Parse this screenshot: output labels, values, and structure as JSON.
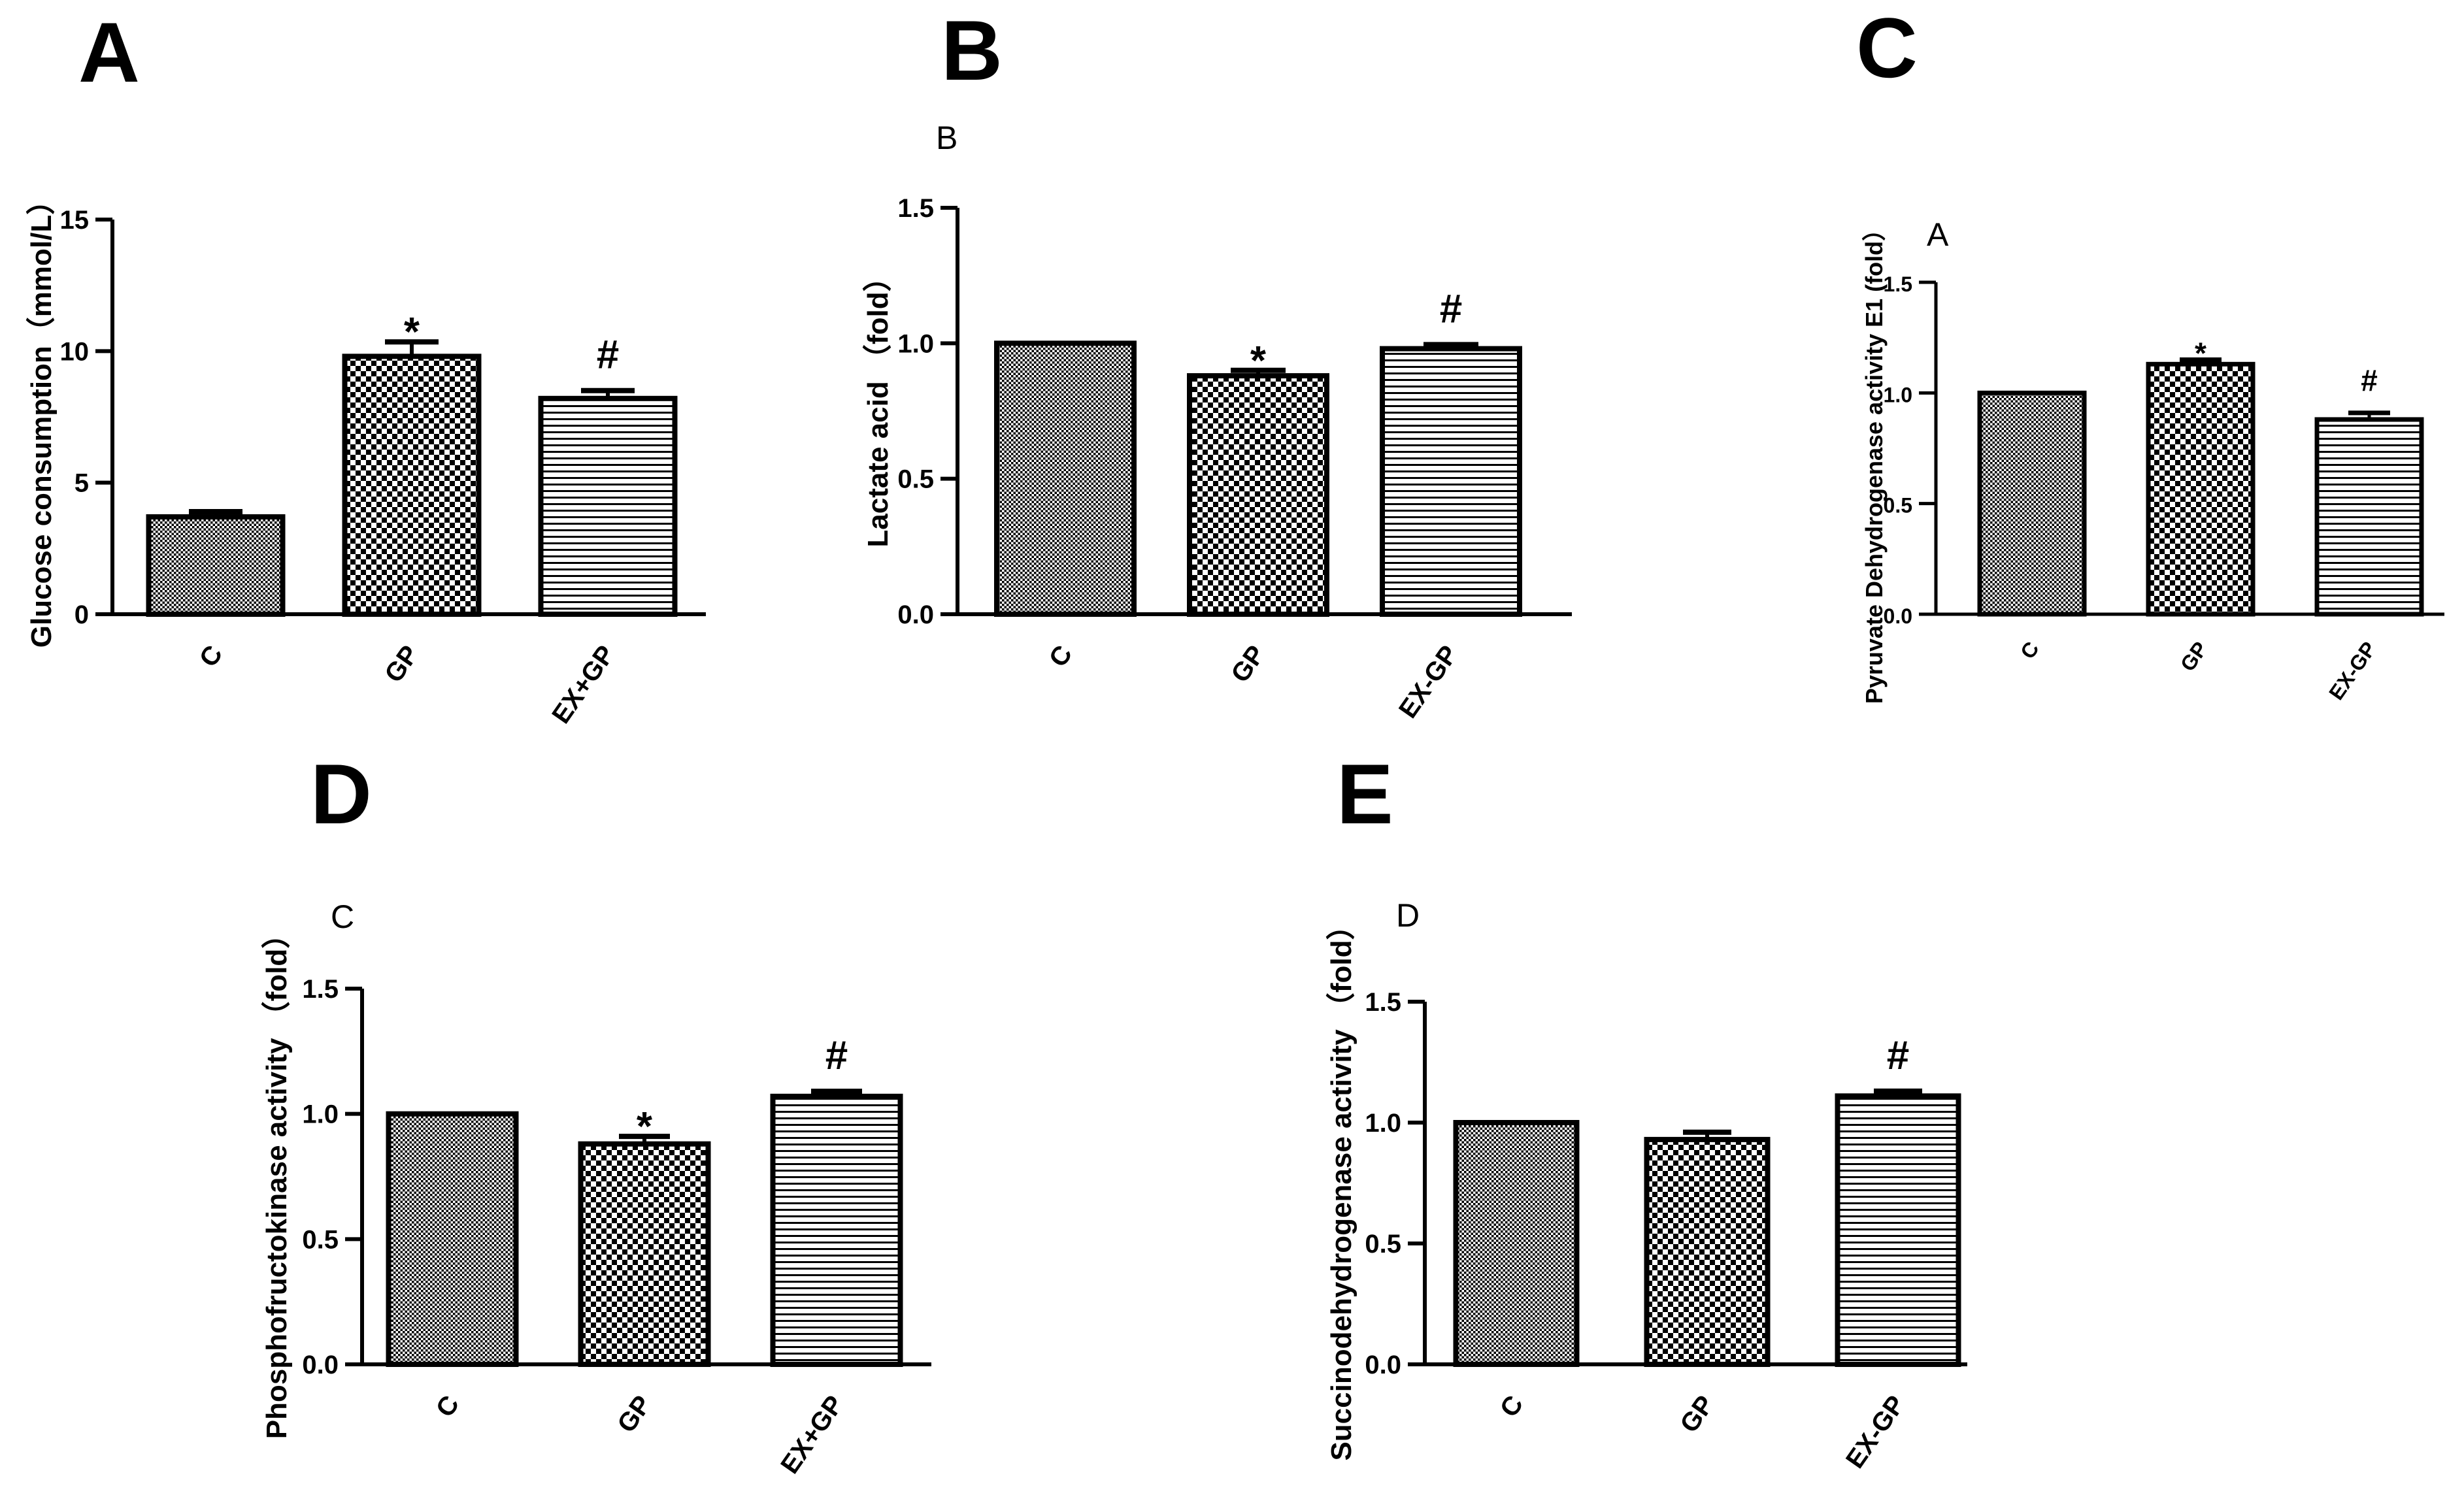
{
  "chart_data": [
    {
      "type": "bar",
      "panel": "A",
      "subtitle": "",
      "ylabel": "Glucose consumption（mmol/L）",
      "categories": [
        "C",
        "GP",
        "EX+GP"
      ],
      "values": [
        3.7,
        9.8,
        8.2
      ],
      "errors": [
        0.2,
        0.55,
        0.3
      ],
      "markers": [
        "",
        "*",
        "#"
      ],
      "ylim": [
        0,
        15
      ],
      "yticks": [
        0,
        5,
        10,
        15
      ],
      "ytick_labels": [
        "0",
        "5",
        "10",
        "15"
      ]
    },
    {
      "type": "bar",
      "panel": "B",
      "subtitle": "B",
      "ylabel": "Lactate  acid （fold）",
      "categories": [
        "C",
        "GP",
        "EX-GP"
      ],
      "values": [
        1.0,
        0.88,
        0.98
      ],
      "errors": [
        0.0,
        0.02,
        0.015
      ],
      "markers": [
        "",
        "*",
        "#"
      ],
      "ylim": [
        0,
        1.5
      ],
      "yticks": [
        0,
        0.5,
        1.0,
        1.5
      ],
      "ytick_labels": [
        "0.0",
        "0.5",
        "1.0",
        "1.5"
      ]
    },
    {
      "type": "bar",
      "panel": "C",
      "subtitle": "A",
      "ylabel": "Pyruvate Dehydrogenase activity E1 (fold）",
      "categories": [
        "C",
        "GP",
        "EX-GP"
      ],
      "values": [
        1.0,
        1.13,
        0.88
      ],
      "errors": [
        0.0,
        0.02,
        0.03
      ],
      "markers": [
        "",
        "*",
        "#"
      ],
      "ylim": [
        0,
        1.5
      ],
      "yticks": [
        0,
        0.5,
        1.0,
        1.5
      ],
      "ytick_labels": [
        "0.0",
        "0.5",
        "1.0",
        "1.5"
      ]
    },
    {
      "type": "bar",
      "panel": "D",
      "subtitle": "C",
      "ylabel": "Phosphofructokinase activity （fold）",
      "categories": [
        "C",
        "GP",
        "EX+GP"
      ],
      "values": [
        1.0,
        0.88,
        1.07
      ],
      "errors": [
        0.0,
        0.03,
        0.02
      ],
      "markers": [
        "",
        "*",
        "#"
      ],
      "ylim": [
        0,
        1.5
      ],
      "yticks": [
        0,
        0.5,
        1.0,
        1.5
      ],
      "ytick_labels": [
        "0.0",
        "0.5",
        "1.0",
        "1.5"
      ]
    },
    {
      "type": "bar",
      "panel": "E",
      "subtitle": "D",
      "ylabel": "Succinodehydrogenase activity （fold）",
      "categories": [
        "C",
        "GP",
        "EX-GP"
      ],
      "values": [
        1.0,
        0.93,
        1.11
      ],
      "errors": [
        0.0,
        0.03,
        0.02
      ],
      "markers": [
        "",
        "",
        "#"
      ],
      "ylim": [
        0,
        1.5
      ],
      "yticks": [
        0,
        0.5,
        1.0,
        1.5
      ],
      "ytick_labels": [
        "0.0",
        "0.5",
        "1.0",
        "1.5"
      ]
    }
  ]
}
